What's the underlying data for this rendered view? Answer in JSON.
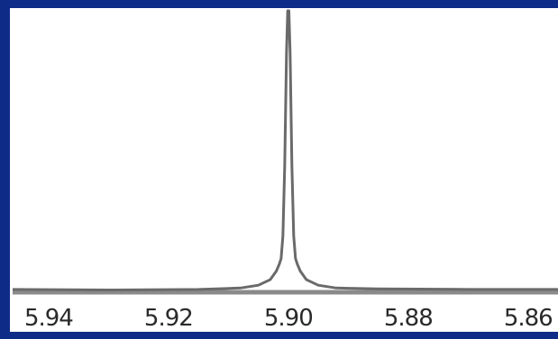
{
  "chart_data": {
    "type": "line",
    "x_tick_labels": [
      "5.94",
      "5.92",
      "5.90",
      "5.88",
      "5.86"
    ],
    "x_ticks": [
      5.94,
      5.92,
      5.9,
      5.88,
      5.86
    ],
    "xlim": [
      5.946,
      5.855
    ],
    "x_reversed": true,
    "ylim": [
      0,
      1.0
    ],
    "grid": false,
    "series": [
      {
        "x": [
          5.946,
          5.93,
          5.915,
          5.908,
          5.905,
          5.903,
          5.902,
          5.9015,
          5.9012,
          5.9009,
          5.9006,
          5.9003,
          5.9001,
          5.9,
          5.8999,
          5.8997,
          5.8994,
          5.8991,
          5.8988,
          5.8985,
          5.898,
          5.897,
          5.895,
          5.892,
          5.885,
          5.87,
          5.855
        ],
        "y": [
          0.01,
          0.008,
          0.01,
          0.015,
          0.025,
          0.045,
          0.075,
          0.1,
          0.12,
          0.2,
          0.45,
          0.85,
          1.0,
          1.0,
          1.0,
          0.85,
          0.45,
          0.2,
          0.12,
          0.1,
          0.075,
          0.045,
          0.025,
          0.015,
          0.012,
          0.01,
          0.01
        ]
      }
    ]
  }
}
